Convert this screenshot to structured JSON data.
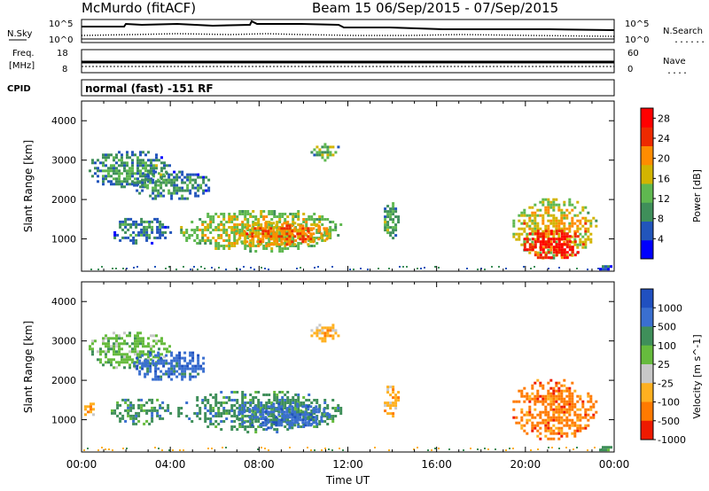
{
  "header": {
    "station": "McMurdo (fitACF)",
    "beam_info": "Beam 15 06/Sep/2015 - 07/Sep/2015"
  },
  "strips": {
    "noise_left_label": "N.Sky",
    "noise_right_label": "N.Search",
    "noise_right_legend": "......",
    "noise_tick_top": "10^5",
    "noise_tick_bottom": "10^0",
    "freq_label_1": "Freq.",
    "freq_label_2": "[MHz]",
    "freq_tick_top": "18",
    "freq_tick_bottom": "8",
    "nave_label": "Nave",
    "nave_legend": "....",
    "nave_tick_top": "60",
    "nave_tick_bottom": "0",
    "cpid_label": "CPID",
    "cpid_value": "normal (fast) -151 RF"
  },
  "chart_data": [
    {
      "type": "heatmap",
      "title": "",
      "xlabel": "Time UT",
      "ylabel": "Slant Range [km]",
      "x_ticks": [
        "00:00",
        "04:00",
        "08:00",
        "12:00",
        "16:00",
        "20:00",
        "00:00"
      ],
      "x_range_hours": [
        0,
        24
      ],
      "y_ticks": [
        1000,
        2000,
        3000,
        4000
      ],
      "ylim": [
        180,
        4500
      ],
      "colorbar_label": "Power [dB]",
      "colorbar_ticks": [
        4,
        8,
        12,
        16,
        20,
        24,
        28
      ],
      "colorbar_range": [
        0,
        30
      ],
      "colorscale": [
        "#0000ff",
        "#2255bb",
        "#3f8f5a",
        "#5fb850",
        "#d2b400",
        "#ff8c00",
        "#ee2a00",
        "#ff0000"
      ],
      "regions": [
        {
          "t_start": 0.2,
          "t_end": 4.0,
          "r_low": 2300,
          "r_high": 3300,
          "level": 10
        },
        {
          "t_start": 1.2,
          "t_end": 4.0,
          "r_low": 900,
          "r_high": 1600,
          "level": 9
        },
        {
          "t_start": 2.2,
          "t_end": 5.8,
          "r_low": 2000,
          "r_high": 2800,
          "level": 10
        },
        {
          "t_start": 4.2,
          "t_end": 11.8,
          "r_low": 700,
          "r_high": 1800,
          "level": 16
        },
        {
          "t_start": 6.8,
          "t_end": 11.2,
          "r_low": 800,
          "r_high": 1500,
          "level": 22
        },
        {
          "t_start": 10.2,
          "t_end": 11.6,
          "r_low": 3000,
          "r_high": 3500,
          "level": 12
        },
        {
          "t_start": 13.5,
          "t_end": 14.3,
          "r_low": 1000,
          "r_high": 2000,
          "level": 12
        },
        {
          "t_start": 19.3,
          "t_end": 23.2,
          "r_low": 500,
          "r_high": 2100,
          "level": 18
        },
        {
          "t_start": 19.8,
          "t_end": 22.6,
          "r_low": 500,
          "r_high": 1300,
          "level": 28
        },
        {
          "t_start": 23.2,
          "t_end": 23.9,
          "r_low": 200,
          "r_high": 400,
          "level": 6
        }
      ]
    },
    {
      "type": "heatmap",
      "title": "",
      "xlabel": "Time UT",
      "ylabel": "Slant Range [km]",
      "x_ticks": [
        "00:00",
        "04:00",
        "08:00",
        "12:00",
        "16:00",
        "20:00",
        "00:00"
      ],
      "x_range_hours": [
        0,
        24
      ],
      "y_ticks": [
        1000,
        2000,
        3000,
        4000
      ],
      "ylim": [
        180,
        4500
      ],
      "colorbar_label": "Velocity [m s^-1]",
      "colorbar_ticks": [
        1000,
        500,
        100,
        25,
        -25,
        -100,
        -500,
        -1000
      ],
      "colorscale": [
        "#2050c0",
        "#3a6fd0",
        "#3f8f5a",
        "#66bb3d",
        "#c8c8c8",
        "#ffb020",
        "#ff7a00",
        "#ee1a00"
      ],
      "regions": [
        {
          "t_start": 0.2,
          "t_end": 4.0,
          "r_low": 2300,
          "r_high": 3300,
          "level": 25
        },
        {
          "t_start": 1.2,
          "t_end": 4.0,
          "r_low": 900,
          "r_high": 1600,
          "level": 100
        },
        {
          "t_start": 2.2,
          "t_end": 5.8,
          "r_low": 2000,
          "r_high": 2800,
          "level": 500
        },
        {
          "t_start": 4.2,
          "t_end": 11.8,
          "r_low": 700,
          "r_high": 1800,
          "level": 100
        },
        {
          "t_start": 6.8,
          "t_end": 11.2,
          "r_low": 800,
          "r_high": 1500,
          "level": 500
        },
        {
          "t_start": 10.2,
          "t_end": 11.6,
          "r_low": 3000,
          "r_high": 3500,
          "level": -100
        },
        {
          "t_start": 13.5,
          "t_end": 14.3,
          "r_low": 1000,
          "r_high": 2000,
          "level": -100
        },
        {
          "t_start": 19.3,
          "t_end": 23.2,
          "r_low": 500,
          "r_high": 2100,
          "level": -500
        },
        {
          "t_start": 0.0,
          "t_end": 0.6,
          "r_low": 1100,
          "r_high": 1500,
          "level": -100
        },
        {
          "t_start": 23.2,
          "t_end": 23.9,
          "r_low": 200,
          "r_high": 400,
          "level": 100
        }
      ]
    }
  ]
}
